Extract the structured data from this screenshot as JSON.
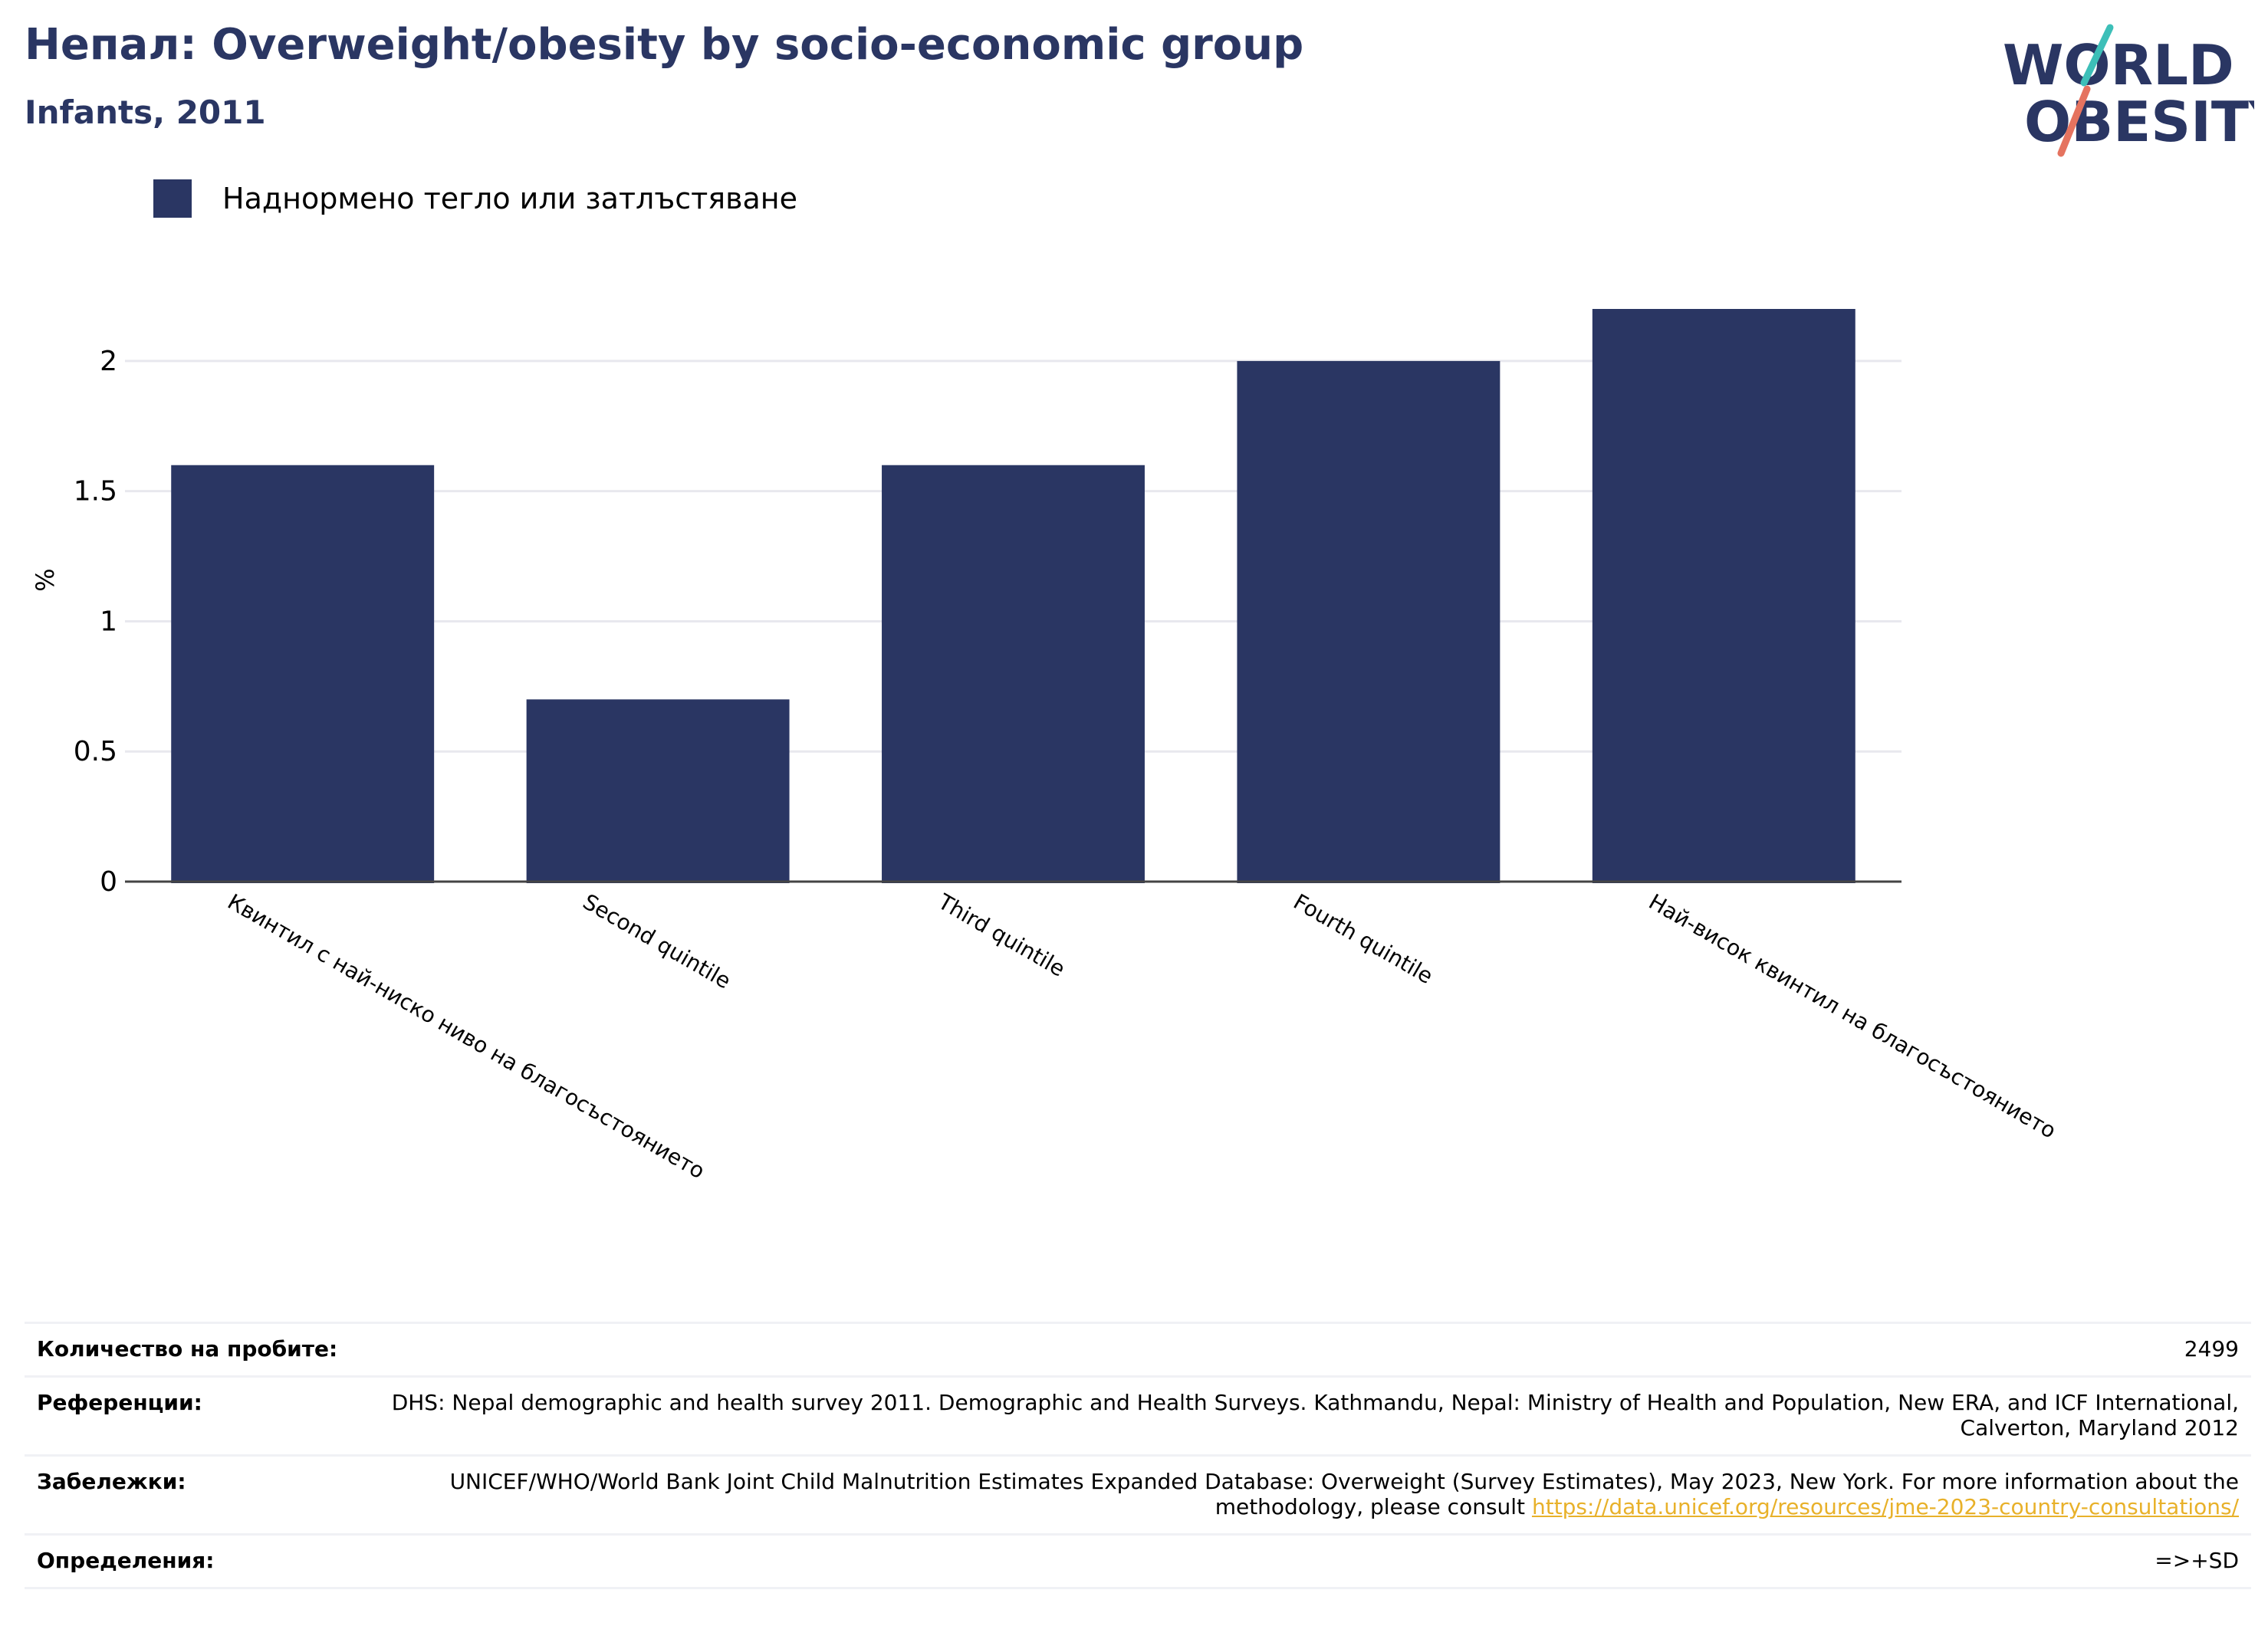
{
  "header": {
    "title": "Непал: Overweight/obesity by socio-economic group",
    "subtitle": "Infants, 2011"
  },
  "logo": {
    "line1": "WORLD",
    "line2": "OBESITY"
  },
  "colors": {
    "bar": "#2a3663",
    "title": "#2a3663",
    "link": "#e8b12a",
    "grid": "#e8e8ee"
  },
  "chart_data": {
    "type": "bar",
    "categories": [
      "Квинтил с най-ниско ниво на благосъстоянието",
      "Second quintile",
      "Third quintile",
      "Fourth quintile",
      "Най-висок квинтил на благосъстоянието"
    ],
    "series": [
      {
        "name": "Наднормено тегло или затлъстяване",
        "values": [
          1.6,
          0.7,
          1.6,
          2.0,
          2.2
        ]
      }
    ],
    "ylabel": "%",
    "ylim": [
      0,
      2.2
    ],
    "yticks": [
      0,
      0.5,
      1,
      1.5,
      2
    ],
    "ytick_labels": [
      "0",
      "0.5",
      "1",
      "1.5",
      "2"
    ],
    "grid": true,
    "legend_position": "top-left"
  },
  "footer": {
    "sample_label": "Количество на пробите:",
    "sample_value": "2499",
    "refs_label": "Референции:",
    "refs_value": "DHS: Nepal demographic and health survey 2011. Demographic and Health Surveys. Kathmandu, Nepal: Ministry of Health and Population, New ERA, and ICF International, Calverton, Maryland 2012",
    "notes_label": "Забележки:",
    "notes_value": "UNICEF/WHO/World Bank Joint Child Malnutrition Estimates Expanded Database: Overweight (Survey Estimates), May 2023, New York. For more information about the methodology, please consult",
    "notes_link": "https://data.unicef.org/resources/jme-2023-country-consultations/",
    "defs_label": "Определения:",
    "defs_value": "=>+SD"
  }
}
